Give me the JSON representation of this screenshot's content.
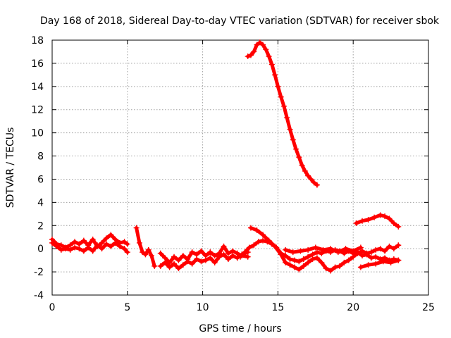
{
  "chart_data": {
    "type": "scatter",
    "title": "Day 168 of 2018, Sidereal Day-to-day VTEC variation (SDTVAR) for receiver sbok",
    "xlabel": "GPS time / hours",
    "ylabel": "SDTVAR / TECUs",
    "xlim": [
      0,
      25
    ],
    "ylim": [
      -4,
      18
    ],
    "xticks": [
      0,
      5,
      10,
      15,
      20,
      25
    ],
    "yticks": [
      -4,
      -2,
      0,
      2,
      4,
      6,
      8,
      10,
      12,
      14,
      16,
      18
    ],
    "grid": true,
    "marker": "plus",
    "color": "#ff0000",
    "series": [
      {
        "name": "sbok",
        "segments": [
          [
            [
              0.0,
              0.8
            ],
            [
              0.3,
              0.4
            ],
            [
              0.6,
              0.3
            ],
            [
              0.9,
              0.1
            ],
            [
              1.2,
              0.3
            ],
            [
              1.5,
              0.6
            ],
            [
              1.8,
              0.4
            ],
            [
              2.1,
              0.7
            ],
            [
              2.4,
              0.3
            ],
            [
              2.7,
              0.8
            ],
            [
              3.0,
              0.2
            ],
            [
              3.3,
              0.5
            ],
            [
              3.6,
              0.9
            ],
            [
              3.9,
              1.2
            ],
            [
              4.2,
              0.8
            ],
            [
              4.5,
              0.5
            ],
            [
              4.8,
              0.6
            ],
            [
              5.0,
              0.4
            ]
          ],
          [
            [
              0.0,
              0.5
            ],
            [
              0.3,
              0.2
            ],
            [
              0.6,
              -0.1
            ],
            [
              0.9,
              0.0
            ],
            [
              1.2,
              -0.1
            ],
            [
              1.5,
              0.1
            ],
            [
              1.8,
              0.0
            ],
            [
              2.1,
              -0.2
            ],
            [
              2.4,
              0.1
            ],
            [
              2.7,
              -0.2
            ],
            [
              3.0,
              0.3
            ],
            [
              3.3,
              0.0
            ],
            [
              3.6,
              0.4
            ],
            [
              3.9,
              0.2
            ],
            [
              4.2,
              0.5
            ],
            [
              4.5,
              0.2
            ],
            [
              4.8,
              0.0
            ],
            [
              5.0,
              -0.3
            ]
          ],
          [
            [
              5.6,
              1.8
            ],
            [
              5.8,
              0.5
            ],
            [
              6.0,
              -0.3
            ],
            [
              6.2,
              -0.5
            ],
            [
              6.4,
              -0.1
            ],
            [
              6.6,
              -0.6
            ],
            [
              6.8,
              -1.5
            ]
          ],
          [
            [
              7.2,
              -0.4
            ],
            [
              7.5,
              -0.8
            ],
            [
              7.8,
              -1.2
            ],
            [
              8.1,
              -0.7
            ],
            [
              8.4,
              -1.0
            ],
            [
              8.7,
              -0.6
            ],
            [
              9.0,
              -0.9
            ],
            [
              9.3,
              -0.3
            ],
            [
              9.6,
              -0.5
            ],
            [
              9.9,
              -0.2
            ],
            [
              10.2,
              -0.6
            ],
            [
              10.5,
              -0.3
            ],
            [
              10.8,
              -0.6
            ],
            [
              11.1,
              -0.4
            ],
            [
              11.4,
              0.2
            ],
            [
              11.7,
              -0.4
            ],
            [
              12.0,
              -0.2
            ],
            [
              12.3,
              -0.4
            ],
            [
              12.6,
              -0.6
            ],
            [
              13.0,
              -0.7
            ]
          ],
          [
            [
              7.2,
              -1.5
            ],
            [
              7.5,
              -1.2
            ],
            [
              7.8,
              -1.6
            ],
            [
              8.1,
              -1.3
            ],
            [
              8.4,
              -1.7
            ],
            [
              8.7,
              -1.4
            ],
            [
              9.0,
              -1.1
            ],
            [
              9.3,
              -1.3
            ],
            [
              9.6,
              -0.9
            ],
            [
              9.9,
              -1.1
            ],
            [
              10.2,
              -1.0
            ],
            [
              10.5,
              -0.8
            ],
            [
              10.8,
              -1.2
            ],
            [
              11.1,
              -0.7
            ],
            [
              11.4,
              -0.5
            ],
            [
              11.7,
              -0.9
            ],
            [
              12.0,
              -0.6
            ],
            [
              12.3,
              -0.8
            ],
            [
              12.6,
              -0.5
            ],
            [
              13.0,
              -0.3
            ]
          ],
          [
            [
              12.5,
              -0.7
            ],
            [
              12.8,
              -0.3
            ],
            [
              13.1,
              0.1
            ],
            [
              13.4,
              0.3
            ],
            [
              13.7,
              0.6
            ],
            [
              14.0,
              0.7
            ],
            [
              14.3,
              0.6
            ],
            [
              14.6,
              0.4
            ],
            [
              14.9,
              0.1
            ],
            [
              15.2,
              -0.4
            ],
            [
              15.5,
              -0.6
            ],
            [
              15.8,
              -0.9
            ],
            [
              16.1,
              -1.0
            ],
            [
              16.4,
              -1.1
            ],
            [
              16.7,
              -0.9
            ],
            [
              17.0,
              -0.7
            ],
            [
              17.3,
              -0.5
            ],
            [
              17.6,
              -0.3
            ],
            [
              17.9,
              -0.4
            ],
            [
              18.2,
              -0.2
            ],
            [
              18.5,
              -0.3
            ],
            [
              18.8,
              -0.1
            ],
            [
              19.1,
              -0.2
            ],
            [
              19.4,
              -0.4
            ],
            [
              19.7,
              -0.2
            ],
            [
              20.0,
              -0.4
            ],
            [
              20.3,
              -0.3
            ],
            [
              20.6,
              -0.6
            ],
            [
              20.9,
              -0.5
            ],
            [
              21.2,
              -0.8
            ],
            [
              21.5,
              -0.7
            ],
            [
              21.8,
              -0.9
            ],
            [
              22.1,
              -0.8
            ],
            [
              22.4,
              -1.0
            ],
            [
              22.7,
              -0.9
            ],
            [
              23.0,
              -1.0
            ]
          ],
          [
            [
              13.2,
              1.8
            ],
            [
              13.6,
              1.6
            ],
            [
              14.0,
              1.2
            ],
            [
              14.4,
              0.7
            ],
            [
              14.8,
              0.2
            ],
            [
              15.2,
              -0.5
            ],
            [
              15.5,
              -1.2
            ],
            [
              15.8,
              -1.4
            ],
            [
              16.1,
              -1.6
            ],
            [
              16.4,
              -1.8
            ],
            [
              16.7,
              -1.5
            ],
            [
              17.0,
              -1.2
            ],
            [
              17.3,
              -0.9
            ],
            [
              17.6,
              -0.8
            ],
            [
              17.9,
              -1.2
            ],
            [
              18.2,
              -1.7
            ],
            [
              18.5,
              -1.9
            ],
            [
              18.8,
              -1.6
            ],
            [
              19.1,
              -1.5
            ],
            [
              19.4,
              -1.2
            ],
            [
              19.7,
              -1.0
            ],
            [
              20.0,
              -0.7
            ],
            [
              20.3,
              -0.4
            ],
            [
              20.6,
              -0.2
            ],
            [
              20.9,
              -0.4
            ],
            [
              21.2,
              -0.3
            ],
            [
              21.5,
              -0.1
            ],
            [
              21.8,
              0.0
            ],
            [
              22.1,
              -0.2
            ],
            [
              22.4,
              0.2
            ],
            [
              22.7,
              0.0
            ],
            [
              23.0,
              0.3
            ]
          ],
          [
            [
              15.5,
              -0.1
            ],
            [
              16.0,
              -0.3
            ],
            [
              16.5,
              -0.2
            ],
            [
              17.0,
              -0.1
            ],
            [
              17.5,
              0.1
            ],
            [
              18.0,
              -0.1
            ],
            [
              18.5,
              0.0
            ],
            [
              19.0,
              -0.3
            ],
            [
              19.5,
              0.0
            ],
            [
              20.0,
              -0.2
            ],
            [
              20.5,
              0.1
            ]
          ],
          [
            [
              20.5,
              -1.6
            ],
            [
              21.0,
              -1.4
            ],
            [
              21.5,
              -1.3
            ],
            [
              22.0,
              -1.1
            ],
            [
              22.5,
              -1.2
            ],
            [
              23.0,
              -1.0
            ]
          ],
          [
            [
              13.0,
              16.6
            ],
            [
              13.2,
              16.7
            ],
            [
              13.4,
              17.0
            ],
            [
              13.6,
              17.6
            ],
            [
              13.8,
              17.8
            ],
            [
              14.0,
              17.6
            ],
            [
              14.2,
              17.2
            ],
            [
              14.4,
              16.6
            ],
            [
              14.6,
              15.9
            ],
            [
              14.8,
              15.0
            ],
            [
              15.0,
              14.0
            ],
            [
              15.2,
              13.1
            ],
            [
              15.4,
              12.3
            ],
            [
              15.6,
              11.3
            ],
            [
              15.8,
              10.3
            ],
            [
              16.0,
              9.4
            ],
            [
              16.2,
              8.6
            ],
            [
              16.4,
              7.9
            ],
            [
              16.6,
              7.2
            ],
            [
              16.8,
              6.7
            ],
            [
              17.0,
              6.3
            ],
            [
              17.2,
              6.0
            ],
            [
              17.4,
              5.7
            ],
            [
              17.6,
              5.5
            ]
          ],
          [
            [
              20.2,
              2.2
            ],
            [
              20.6,
              2.4
            ],
            [
              21.0,
              2.5
            ],
            [
              21.4,
              2.7
            ],
            [
              21.8,
              2.9
            ],
            [
              22.1,
              2.8
            ],
            [
              22.4,
              2.6
            ],
            [
              22.7,
              2.2
            ],
            [
              23.0,
              1.9
            ]
          ]
        ]
      }
    ]
  }
}
